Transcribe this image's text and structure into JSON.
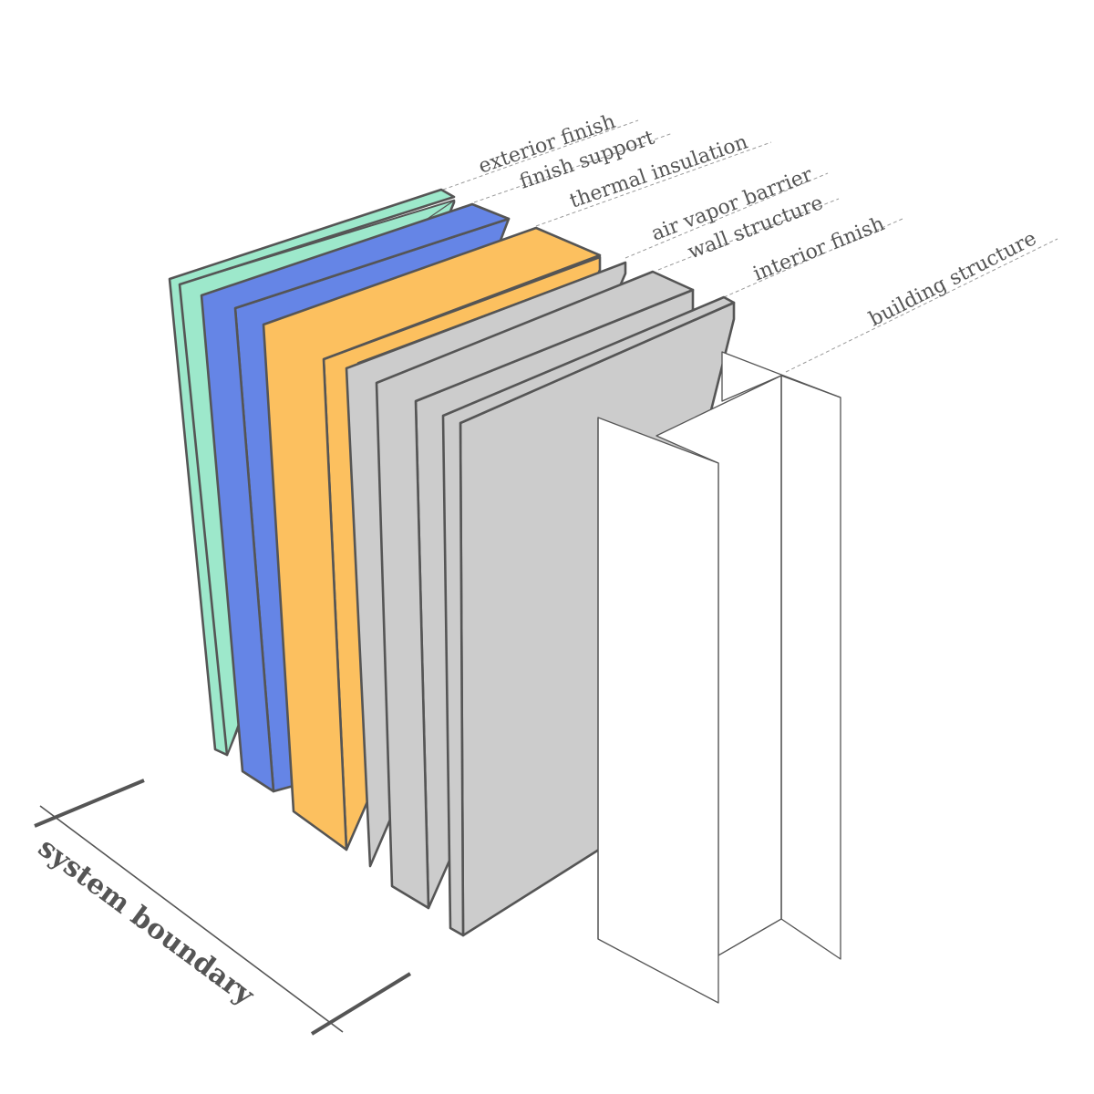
{
  "layers": [
    {
      "id": "exterior-finish",
      "label": "exterior finish",
      "color": "#9de8cb"
    },
    {
      "id": "finish-support",
      "label": "finish support",
      "color": "#6585e6"
    },
    {
      "id": "thermal-insulation",
      "label": "thermal insulation",
      "color": "#fcc05f"
    },
    {
      "id": "air-vapor-barrier",
      "label": "air vapor barrier",
      "color": "#cccccc"
    },
    {
      "id": "wall-structure",
      "label": "wall structure",
      "color": "#cccccc"
    },
    {
      "id": "interior-finish",
      "label": "interior finish",
      "color": "#cccccc"
    },
    {
      "id": "building-structure",
      "label": "building structure",
      "color": "#ffffff"
    }
  ],
  "system_boundary": {
    "label": "system boundary"
  },
  "colors": {
    "outline": "#555555",
    "label_text": "#555555",
    "leader": "#9a9a9a"
  }
}
